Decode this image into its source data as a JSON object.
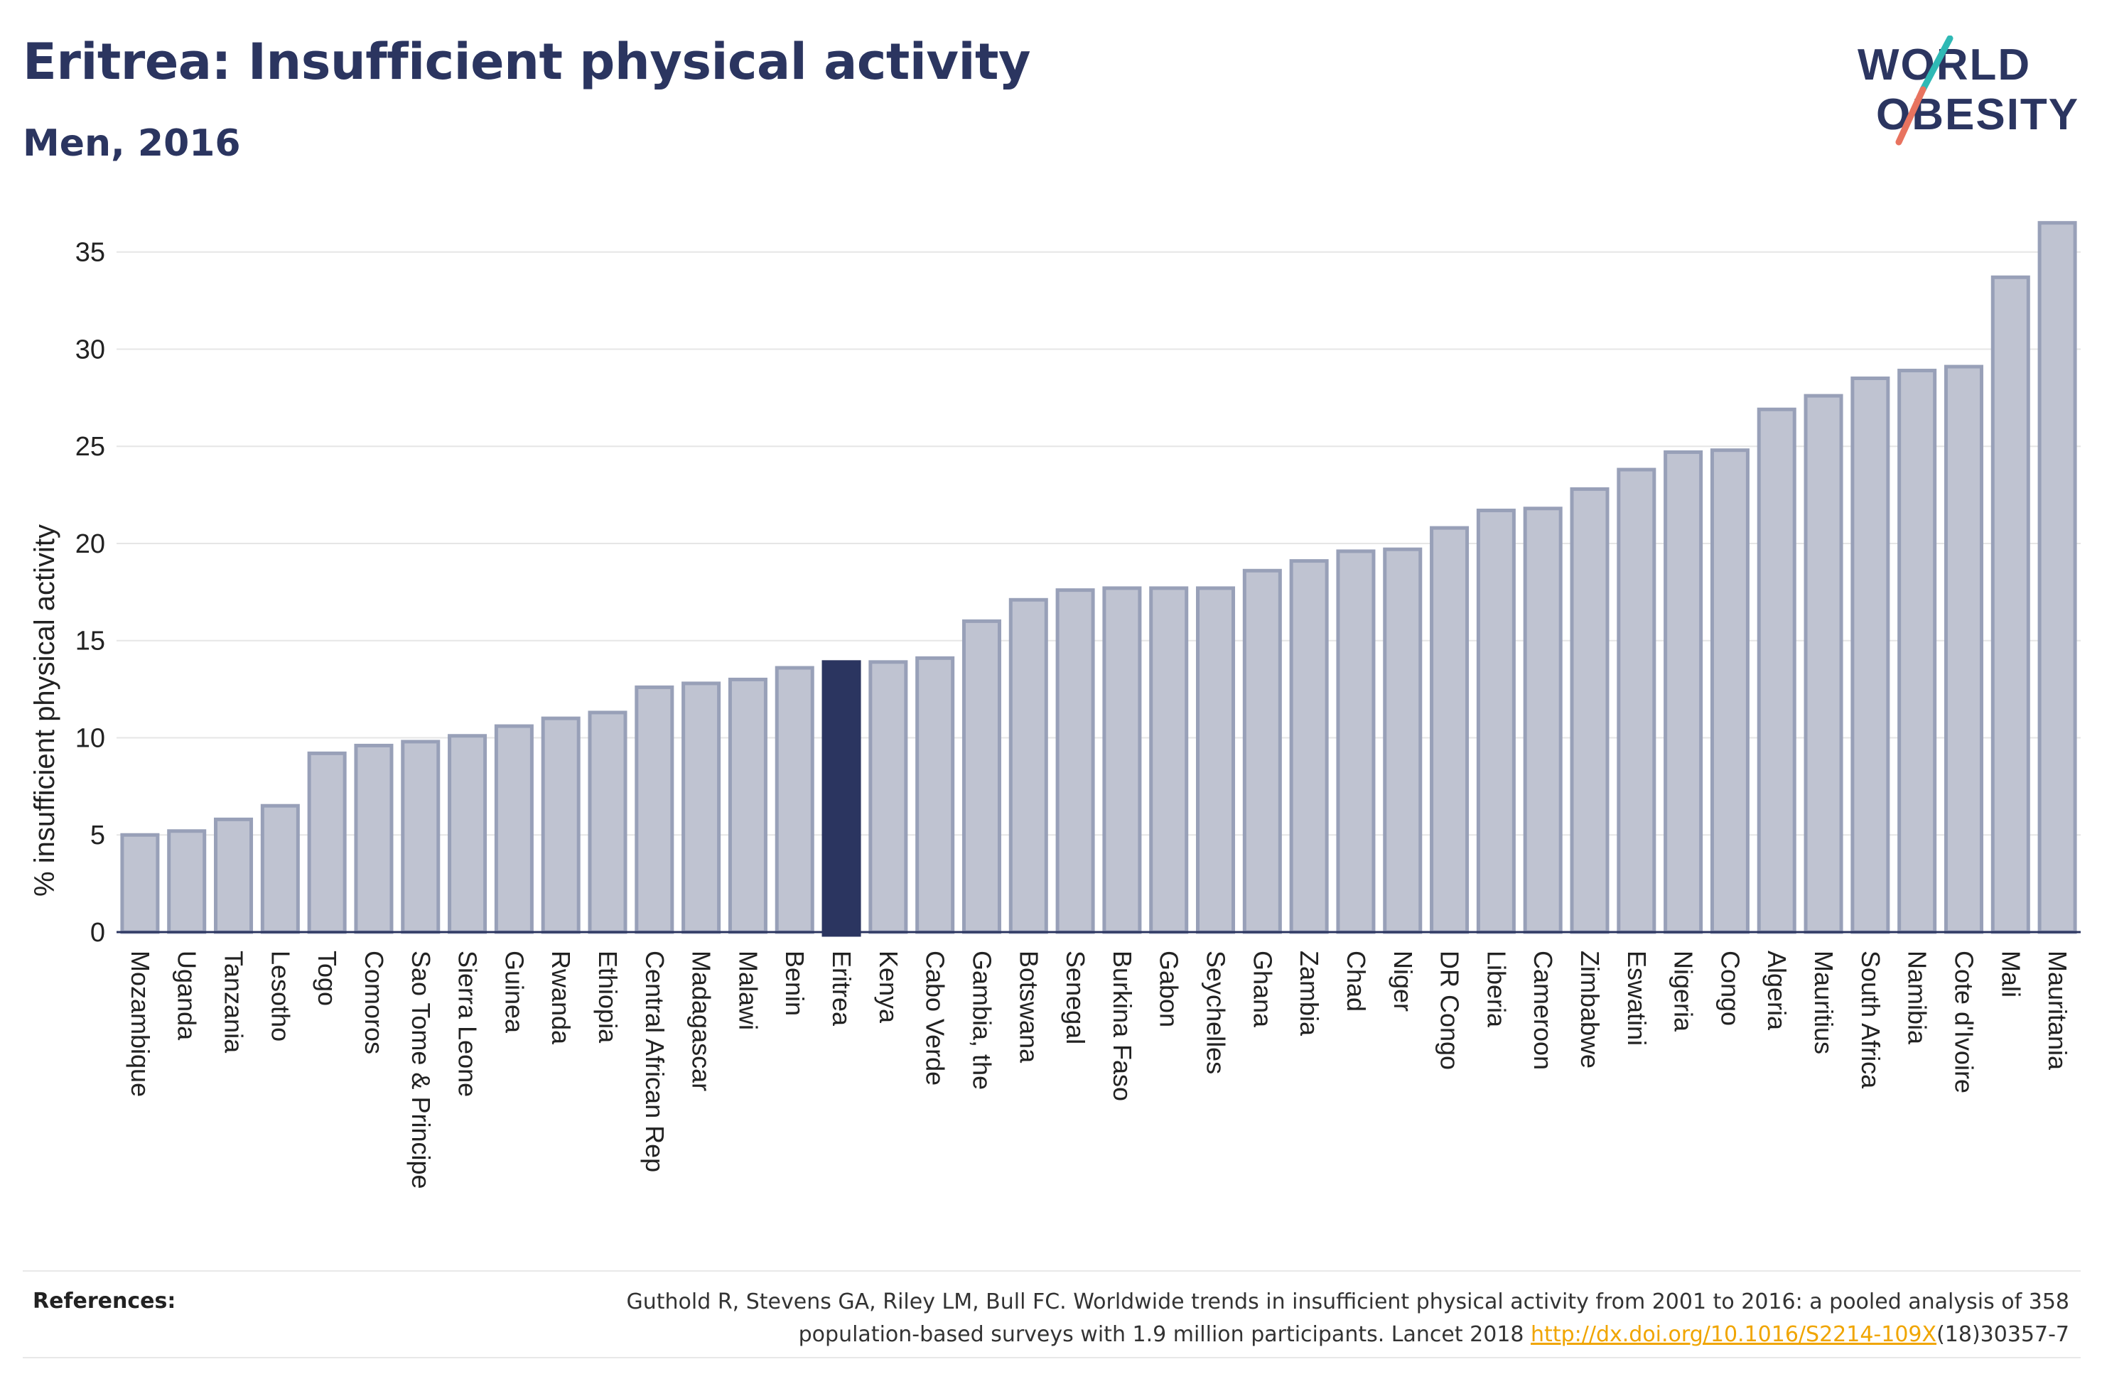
{
  "header": {
    "title": "Eritrea: Insufficient physical activity",
    "subtitle": "Men, 2016"
  },
  "logo": {
    "line1": "WORLD",
    "line2": "OBESITY",
    "colors": {
      "text": "#2b3560",
      "slash_teal": "#2fb9b5",
      "slash_coral": "#e8735f"
    }
  },
  "colors": {
    "bar_fill": "#bfc3d1",
    "bar_stroke": "#98a0b8",
    "highlight": "#2b3560",
    "grid": "#e6e6e6",
    "axis": "#2b3560"
  },
  "chart_data": {
    "type": "bar",
    "ylabel": "% insufficient physical activity",
    "xlabel": "",
    "ylim": [
      0,
      37
    ],
    "yticks": [
      0,
      5,
      10,
      15,
      20,
      25,
      30,
      35
    ],
    "grid": true,
    "highlight": "Eritrea",
    "categories": [
      "Mozambique",
      "Uganda",
      "Tanzania",
      "Lesotho",
      "Togo",
      "Comoros",
      "Sao Tome & Principe",
      "Sierra Leone",
      "Guinea",
      "Rwanda",
      "Ethiopia",
      "Central African Rep",
      "Madagascar",
      "Malawi",
      "Benin",
      "Eritrea",
      "Kenya",
      "Cabo Verde",
      "Gambia, the",
      "Botswana",
      "Senegal",
      "Burkina Faso",
      "Gabon",
      "Seychelles",
      "Ghana",
      "Zambia",
      "Chad",
      "Niger",
      "DR Congo",
      "Liberia",
      "Cameroon",
      "Zimbabwe",
      "Eswatini",
      "Nigeria",
      "Congo",
      "Algeria",
      "Mauritius",
      "South Africa",
      "Namibia",
      "Cote d'Ivoire",
      "Mali",
      "Mauritania"
    ],
    "values": [
      5.0,
      5.2,
      5.8,
      6.5,
      9.2,
      9.6,
      9.8,
      10.1,
      10.6,
      11.0,
      11.3,
      12.6,
      12.8,
      13.0,
      13.6,
      13.9,
      13.9,
      14.1,
      16.0,
      17.1,
      17.6,
      17.7,
      17.7,
      17.7,
      18.6,
      19.1,
      19.6,
      19.7,
      20.8,
      21.7,
      21.8,
      22.8,
      23.8,
      24.7,
      24.8,
      26.9,
      27.6,
      28.5,
      28.9,
      29.1,
      33.7,
      36.5
    ]
  },
  "references": {
    "label": "References:",
    "text_line1": "Guthold R, Stevens GA, Riley LM, Bull FC. Worldwide trends in insufficient physical activity from 2001 to 2016: a pooled analysis of 358",
    "text_line2_prefix": "population-based surveys with 1.9 million participants. Lancet 2018 ",
    "link": "http://dx.doi.org/10.1016/S2214-109X",
    "text_line2_suffix": "(18)30357-7"
  }
}
